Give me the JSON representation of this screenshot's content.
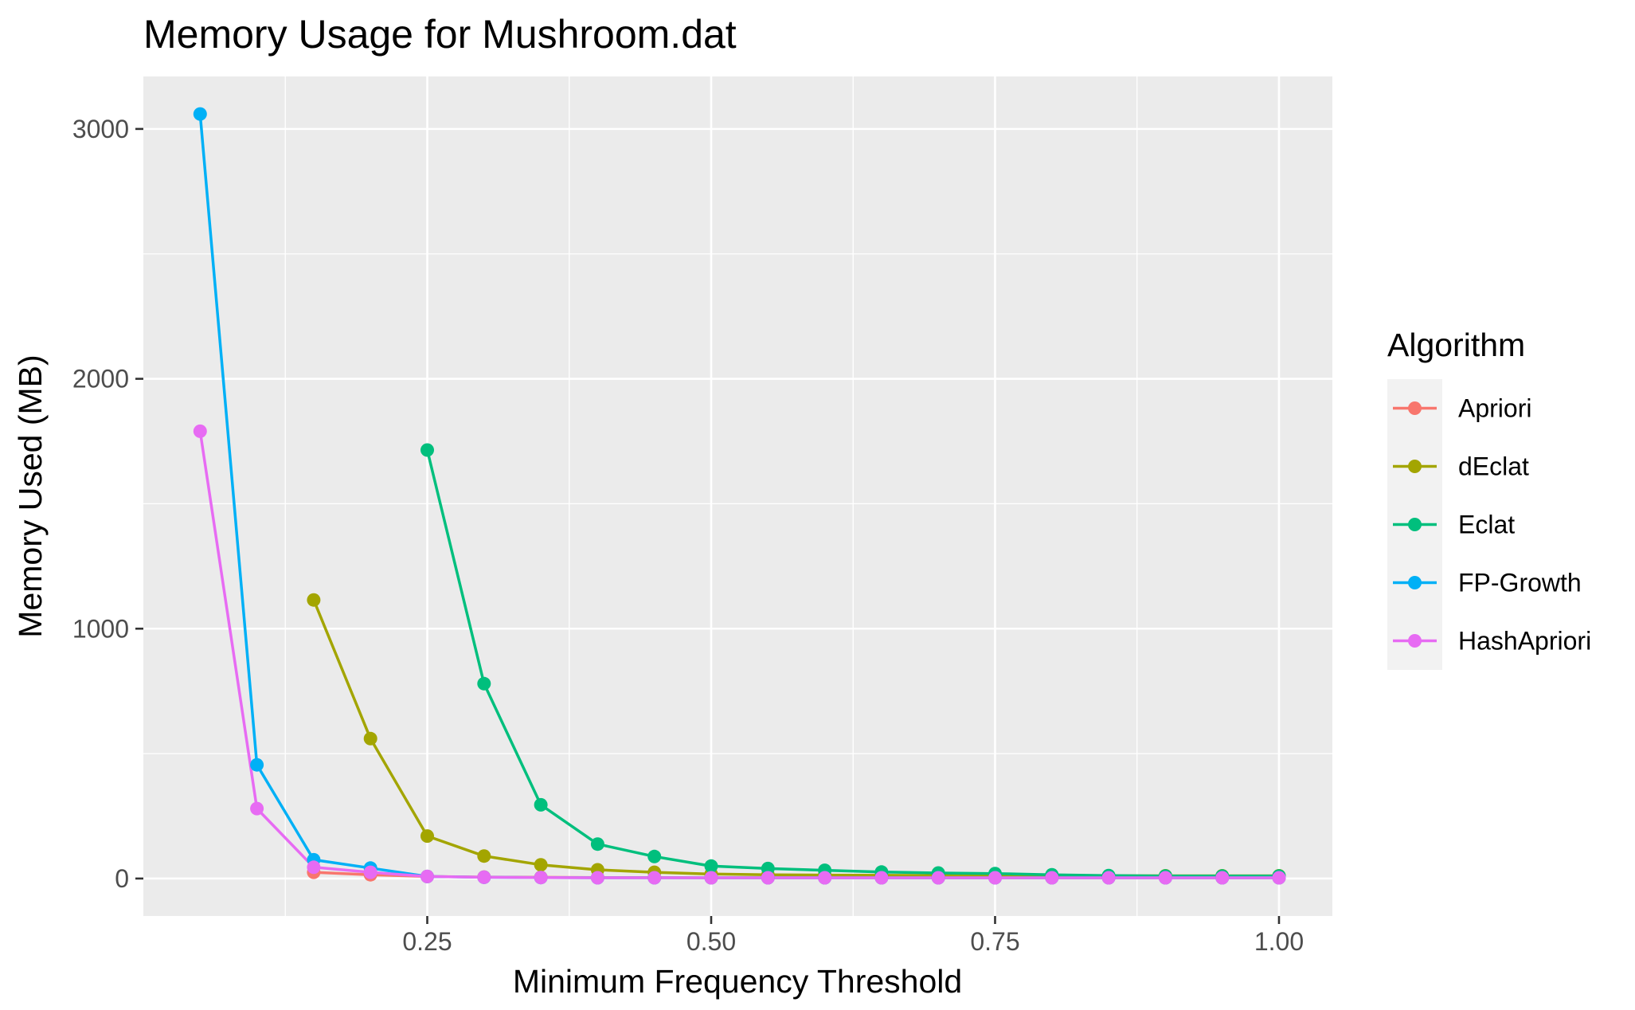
{
  "chart_data": {
    "type": "line",
    "title": "Memory Usage for Mushroom.dat",
    "xlabel": "Minimum Frequency Threshold",
    "ylabel": "Memory Used (MB)",
    "xlim": [
      0.0,
      1.047
    ],
    "ylim": [
      -150,
      3210
    ],
    "x_ticks": [
      {
        "value": 0.25,
        "label": "0.25"
      },
      {
        "value": 0.5,
        "label": "0.50"
      },
      {
        "value": 0.75,
        "label": "0.75"
      },
      {
        "value": 1.0,
        "label": "1.00"
      }
    ],
    "y_ticks": [
      {
        "value": 0,
        "label": "0"
      },
      {
        "value": 1000,
        "label": "1000"
      },
      {
        "value": 2000,
        "label": "2000"
      },
      {
        "value": 3000,
        "label": "3000"
      }
    ],
    "grid": true,
    "legend": {
      "title": "Algorithm",
      "position": "right"
    },
    "series": [
      {
        "name": "Apriori",
        "color": "#F8766D",
        "x": [
          0.15,
          0.2,
          0.25,
          0.3,
          0.35,
          0.4,
          0.45,
          0.5,
          0.55,
          0.6,
          0.65,
          0.7,
          0.75,
          0.8,
          0.85,
          0.9,
          0.95,
          1.0
        ],
        "values": [
          25,
          15,
          8,
          6,
          5,
          4,
          4,
          3,
          3,
          3,
          3,
          3,
          3,
          3,
          3,
          3,
          3,
          3
        ]
      },
      {
        "name": "dEclat",
        "color": "#A3A500",
        "x": [
          0.15,
          0.2,
          0.25,
          0.3,
          0.35,
          0.4,
          0.45,
          0.5,
          0.55,
          0.6,
          0.65,
          0.7,
          0.75,
          0.8,
          0.85,
          0.9,
          0.95,
          1.0
        ],
        "values": [
          1115,
          560,
          170,
          90,
          55,
          35,
          25,
          18,
          15,
          14,
          13,
          12,
          12,
          11,
          11,
          11,
          11,
          11
        ]
      },
      {
        "name": "Eclat",
        "color": "#00BF7D",
        "x": [
          0.25,
          0.3,
          0.35,
          0.4,
          0.45,
          0.5,
          0.55,
          0.6,
          0.65,
          0.7,
          0.75,
          0.8,
          0.85,
          0.9,
          0.95,
          1.0
        ],
        "values": [
          1715,
          780,
          295,
          138,
          88,
          50,
          40,
          33,
          26,
          22,
          20,
          15,
          12,
          10,
          10,
          10
        ]
      },
      {
        "name": "FP-Growth",
        "color": "#00B0F6",
        "x": [
          0.05,
          0.1,
          0.15,
          0.2,
          0.25,
          0.3,
          0.35,
          0.4,
          0.45,
          0.5,
          0.55,
          0.6,
          0.65,
          0.7,
          0.75,
          0.8,
          0.85,
          0.9,
          0.95,
          1.0
        ],
        "values": [
          3060,
          455,
          75,
          42,
          8,
          5,
          4,
          3,
          3,
          3,
          3,
          3,
          3,
          3,
          3,
          3,
          3,
          3,
          3,
          3
        ]
      },
      {
        "name": "HashApriori",
        "color": "#E76BF3",
        "x": [
          0.05,
          0.1,
          0.15,
          0.2,
          0.25,
          0.3,
          0.35,
          0.4,
          0.45,
          0.5,
          0.55,
          0.6,
          0.65,
          0.7,
          0.75,
          0.8,
          0.85,
          0.9,
          0.95,
          1.0
        ],
        "values": [
          1790,
          280,
          45,
          25,
          8,
          5,
          4,
          3,
          3,
          3,
          3,
          3,
          3,
          3,
          3,
          3,
          3,
          3,
          3,
          3
        ]
      }
    ]
  }
}
